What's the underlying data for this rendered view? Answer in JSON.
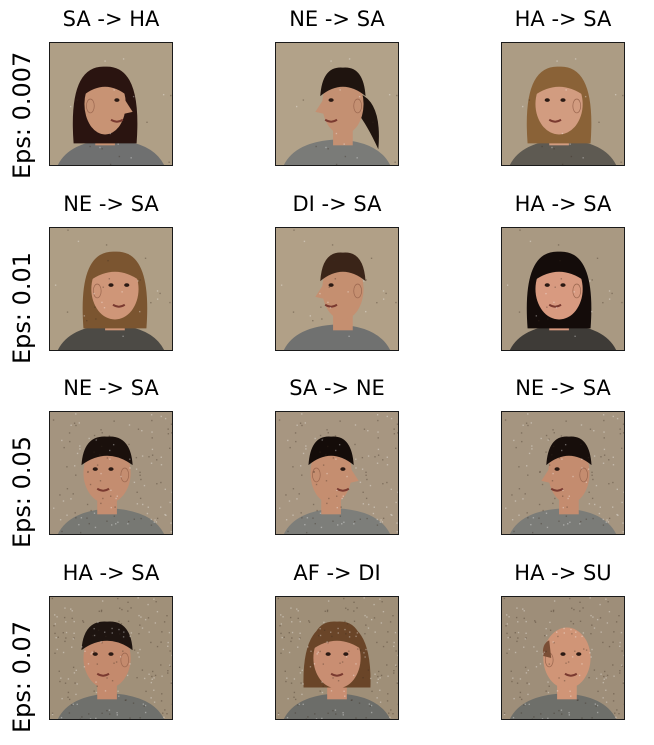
{
  "chart_data": {
    "type": "image-grid",
    "rows": [
      {
        "label": "Eps: 0.007",
        "eps": 0.007,
        "cells": [
          {
            "title": "SA -> HA",
            "pose": "profile-right",
            "hair": "#2a1410",
            "hairStyle": "long",
            "bg": "#b9a88e",
            "shirt": "#6f7070",
            "skin": "#c89374"
          },
          {
            "title": "NE -> SA",
            "pose": "profile-left",
            "hair": "#1f140f",
            "hairStyle": "ponytail",
            "bg": "#bcab91",
            "shirt": "#7a7b78",
            "skin": "#c49072"
          },
          {
            "title": "HA -> SA",
            "pose": "three-quarter-left",
            "hair": "#8a6237",
            "hairStyle": "long",
            "bg": "#b6a58c",
            "shirt": "#5e5a52",
            "skin": "#d29c80"
          }
        ]
      },
      {
        "label": "Eps: 0.01",
        "eps": 0.01,
        "cells": [
          {
            "title": "NE -> SA",
            "pose": "three-quarter-right",
            "hair": "#7b5530",
            "hairStyle": "long",
            "bg": "#b8a78d",
            "shirt": "#4c4a45",
            "skin": "#cf9678"
          },
          {
            "title": "DI -> SA",
            "pose": "profile-left",
            "hair": "#3a2418",
            "hairStyle": "short",
            "bg": "#bba98f",
            "shirt": "#707170",
            "skin": "#c58f70"
          },
          {
            "title": "HA -> SA",
            "pose": "three-quarter-left",
            "hair": "#140c0a",
            "hairStyle": "long",
            "bg": "#b3a28a",
            "shirt": "#3e3b37",
            "skin": "#d89a80"
          }
        ]
      },
      {
        "label": "Eps: 0.05",
        "eps": 0.05,
        "cells": [
          {
            "title": "NE -> SA",
            "pose": "three-quarter-left",
            "hair": "#1a100c",
            "hairStyle": "short",
            "bg": "#ad9c86",
            "shirt": "#777873",
            "skin": "#c48d70"
          },
          {
            "title": "SA -> NE",
            "pose": "profile-right",
            "hair": "#140c09",
            "hairStyle": "short",
            "bg": "#b09f88",
            "shirt": "#7d7e7a",
            "skin": "#c58e70"
          },
          {
            "title": "NE -> SA",
            "pose": "profile-left",
            "hair": "#170e0b",
            "hairStyle": "short",
            "bg": "#ae9d87",
            "shirt": "#7b7c78",
            "skin": "#c48c6f"
          }
        ]
      },
      {
        "label": "Eps: 0.07",
        "eps": 0.07,
        "cells": [
          {
            "title": "HA -> SA",
            "pose": "three-quarter-left",
            "hair": "#1e1410",
            "hairStyle": "short",
            "bg": "#a99880",
            "shirt": "#6f706c",
            "skin": "#c48a6d"
          },
          {
            "title": "AF -> DI",
            "pose": "frontal",
            "hair": "#6a4528",
            "hairStyle": "shoulder",
            "bg": "#a8977f",
            "shirt": "#6c6d69",
            "skin": "#c98e72"
          },
          {
            "title": "HA -> SU",
            "pose": "three-quarter-right",
            "hair": "#7a4e35",
            "hairStyle": "bald",
            "bg": "#a79680",
            "shirt": "#6e6f6a",
            "skin": "#d09577"
          }
        ]
      }
    ]
  }
}
